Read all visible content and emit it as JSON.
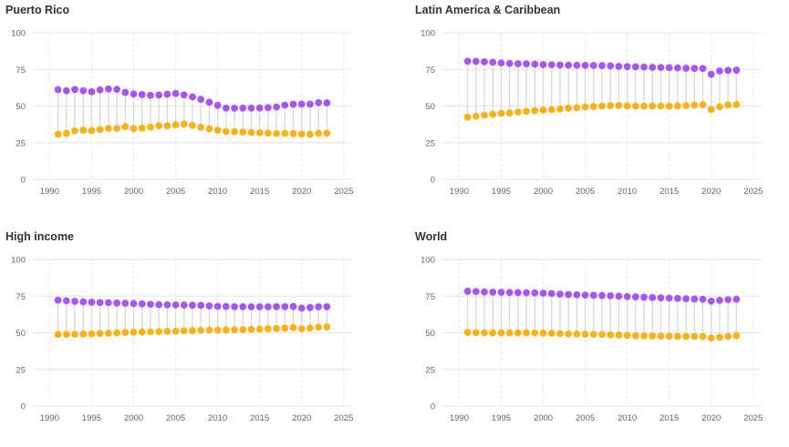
{
  "colors": {
    "series_a": "#a855f7",
    "series_b": "#fbb217",
    "connector": "#d9d9d9",
    "grid": "#e6e6e6",
    "text": "#666666",
    "title": "#333333"
  },
  "chart_data": [
    {
      "type": "dumbbell",
      "title": "Puerto Rico",
      "x": [
        1991,
        1992,
        1993,
        1994,
        1995,
        1996,
        1997,
        1998,
        1999,
        2000,
        2001,
        2002,
        2003,
        2004,
        2005,
        2006,
        2007,
        2008,
        2009,
        2010,
        2011,
        2012,
        2013,
        2014,
        2015,
        2016,
        2017,
        2018,
        2019,
        2020,
        2021,
        2022,
        2023
      ],
      "xlim": [
        1988,
        2026
      ],
      "ylim": [
        0,
        100
      ],
      "xticks": [
        1990,
        1995,
        2000,
        2005,
        2010,
        2015,
        2020,
        2025
      ],
      "yticks": [
        0,
        25,
        50,
        75,
        100
      ],
      "series": [
        {
          "values": [
            61.2,
            60.5,
            61.3,
            60.5,
            59.8,
            61.0,
            61.6,
            61.4,
            59.3,
            58.2,
            57.8,
            57.3,
            57.5,
            58.1,
            58.6,
            57.6,
            56.3,
            54.6,
            52.6,
            50.5,
            48.6,
            48.5,
            48.6,
            48.6,
            48.7,
            48.9,
            49.4,
            50.7,
            51.2,
            51.3,
            51.3,
            52.3,
            52.2
          ]
        },
        {
          "values": [
            30.8,
            31.4,
            33.1,
            33.5,
            33.2,
            33.9,
            34.7,
            34.8,
            36.0,
            34.6,
            34.9,
            35.7,
            36.6,
            36.5,
            37.2,
            37.7,
            36.8,
            35.6,
            34.5,
            33.5,
            32.7,
            32.5,
            32.3,
            32.0,
            31.8,
            31.5,
            31.3,
            31.3,
            31.1,
            30.9,
            30.7,
            31.4,
            31.5
          ]
        }
      ]
    },
    {
      "type": "dumbbell",
      "title": "Latin America & Caribbean",
      "x": [
        1991,
        1992,
        1993,
        1994,
        1995,
        1996,
        1997,
        1998,
        1999,
        2000,
        2001,
        2002,
        2003,
        2004,
        2005,
        2006,
        2007,
        2008,
        2009,
        2010,
        2011,
        2012,
        2013,
        2014,
        2015,
        2016,
        2017,
        2018,
        2019,
        2020,
        2021,
        2022,
        2023
      ],
      "xlim": [
        1988,
        2026
      ],
      "ylim": [
        0,
        100
      ],
      "xticks": [
        1990,
        1995,
        2000,
        2005,
        2010,
        2015,
        2020,
        2025
      ],
      "yticks": [
        0,
        25,
        50,
        75,
        100
      ],
      "series": [
        {
          "values": [
            80.6,
            80.5,
            80.2,
            79.9,
            79.4,
            79.1,
            78.9,
            78.8,
            78.6,
            78.3,
            78.2,
            78.0,
            77.9,
            77.8,
            77.8,
            77.7,
            77.6,
            77.4,
            77.1,
            76.9,
            76.8,
            76.6,
            76.4,
            76.3,
            76.2,
            76.0,
            75.8,
            75.7,
            75.6,
            71.7,
            73.9,
            74.3,
            74.5
          ]
        },
        {
          "values": [
            42.4,
            43.0,
            43.7,
            44.3,
            45.0,
            45.3,
            45.9,
            46.4,
            46.9,
            47.2,
            47.5,
            48.0,
            48.5,
            48.9,
            49.4,
            49.7,
            50.0,
            50.3,
            50.4,
            50.1,
            50.0,
            49.9,
            50.0,
            50.0,
            50.0,
            50.1,
            50.3,
            50.6,
            50.9,
            47.6,
            49.6,
            50.8,
            51.0
          ]
        }
      ]
    },
    {
      "type": "dumbbell",
      "title": "High income",
      "x": [
        1991,
        1992,
        1993,
        1994,
        1995,
        1996,
        1997,
        1998,
        1999,
        2000,
        2001,
        2002,
        2003,
        2004,
        2005,
        2006,
        2007,
        2008,
        2009,
        2010,
        2011,
        2012,
        2013,
        2014,
        2015,
        2016,
        2017,
        2018,
        2019,
        2020,
        2021,
        2022,
        2023
      ],
      "xlim": [
        1988,
        2026
      ],
      "ylim": [
        0,
        100
      ],
      "xticks": [
        1990,
        1995,
        2000,
        2005,
        2010,
        2015,
        2020,
        2025
      ],
      "yticks": [
        0,
        25,
        50,
        75,
        100
      ],
      "series": [
        {
          "values": [
            72.2,
            71.8,
            71.4,
            71.1,
            70.8,
            70.6,
            70.5,
            70.3,
            70.1,
            69.9,
            69.7,
            69.4,
            69.2,
            69.0,
            69.0,
            68.9,
            68.8,
            68.7,
            68.3,
            68.0,
            67.9,
            67.8,
            67.8,
            67.7,
            67.7,
            67.7,
            67.8,
            67.8,
            67.9,
            66.8,
            67.2,
            67.7,
            67.8
          ]
        },
        {
          "values": [
            48.8,
            48.9,
            49.0,
            49.1,
            49.3,
            49.5,
            49.8,
            50.0,
            50.2,
            50.4,
            50.5,
            50.6,
            50.8,
            50.9,
            51.1,
            51.3,
            51.5,
            51.7,
            51.8,
            51.8,
            51.9,
            52.0,
            52.1,
            52.3,
            52.5,
            52.7,
            52.9,
            53.2,
            53.5,
            52.8,
            53.2,
            53.8,
            54.0
          ]
        }
      ]
    },
    {
      "type": "dumbbell",
      "title": "World",
      "x": [
        1991,
        1992,
        1993,
        1994,
        1995,
        1996,
        1997,
        1998,
        1999,
        2000,
        2001,
        2002,
        2003,
        2004,
        2005,
        2006,
        2007,
        2008,
        2009,
        2010,
        2011,
        2012,
        2013,
        2014,
        2015,
        2016,
        2017,
        2018,
        2019,
        2020,
        2021,
        2022,
        2023
      ],
      "xlim": [
        1988,
        2026
      ],
      "ylim": [
        0,
        100
      ],
      "xticks": [
        1990,
        1995,
        2000,
        2005,
        2010,
        2015,
        2020,
        2025
      ],
      "yticks": [
        0,
        25,
        50,
        75,
        100
      ],
      "series": [
        {
          "values": [
            78.3,
            78.1,
            77.9,
            77.7,
            77.6,
            77.5,
            77.4,
            77.3,
            77.2,
            77.0,
            76.8,
            76.4,
            76.1,
            75.9,
            75.7,
            75.5,
            75.4,
            75.2,
            74.9,
            74.7,
            74.5,
            74.2,
            74.0,
            73.8,
            73.6,
            73.4,
            73.2,
            73.0,
            72.8,
            71.6,
            72.1,
            72.6,
            72.8
          ]
        },
        {
          "values": [
            50.2,
            50.1,
            50.0,
            49.9,
            49.9,
            49.9,
            49.9,
            49.9,
            49.9,
            49.8,
            49.6,
            49.4,
            49.2,
            49.1,
            49.0,
            48.9,
            48.8,
            48.6,
            48.4,
            48.2,
            48.0,
            47.9,
            47.8,
            47.7,
            47.6,
            47.5,
            47.5,
            47.5,
            47.4,
            46.4,
            46.9,
            47.5,
            48.0
          ]
        }
      ]
    }
  ]
}
